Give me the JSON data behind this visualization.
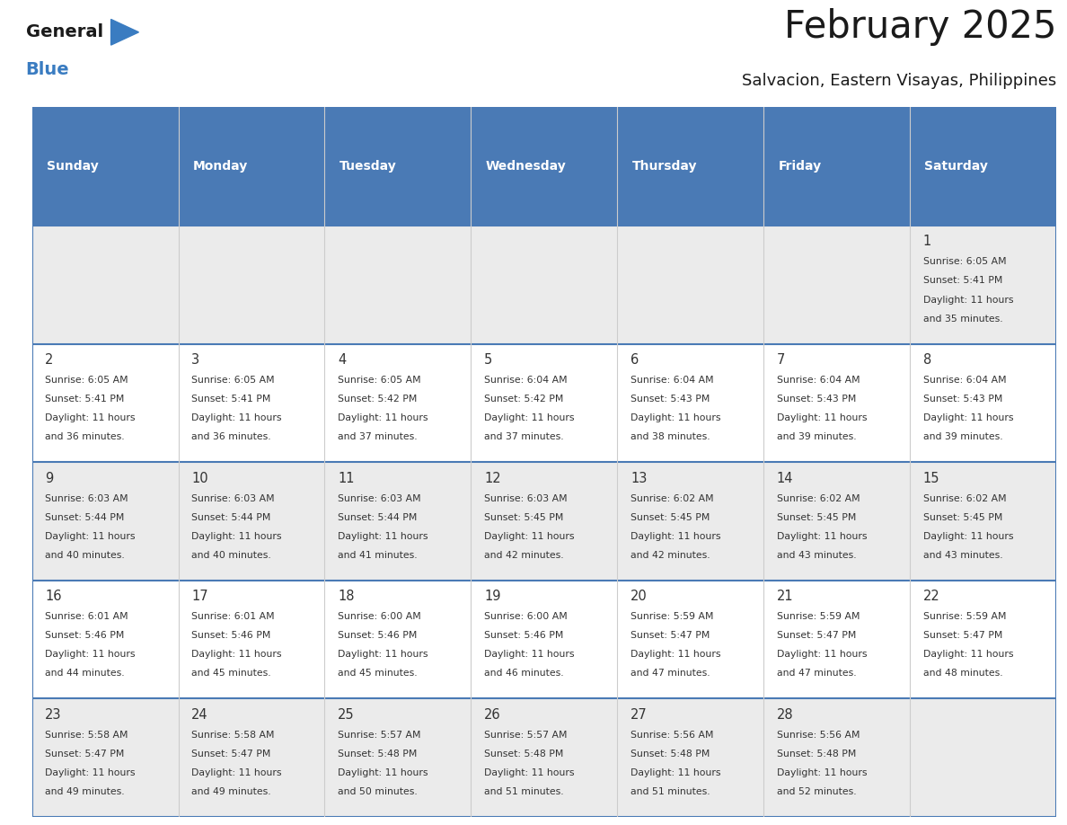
{
  "title": "February 2025",
  "subtitle": "Salvacion, Eastern Visayas, Philippines",
  "days_of_week": [
    "Sunday",
    "Monday",
    "Tuesday",
    "Wednesday",
    "Thursday",
    "Friday",
    "Saturday"
  ],
  "header_bg": "#4a7ab5",
  "header_text": "#FFFFFF",
  "cell_bg_odd": "#ebebeb",
  "cell_bg_even": "#FFFFFF",
  "day_number_color": "#333333",
  "info_text_color": "#333333",
  "border_color": "#4a7ab5",
  "title_color": "#1a1a1a",
  "subtitle_color": "#1a1a1a",
  "logo_general_color": "#1a1a1a",
  "logo_blue_color": "#3a7cc1",
  "calendar_data": [
    [
      {
        "day": null,
        "sunrise": null,
        "sunset": null,
        "daylight": null
      },
      {
        "day": null,
        "sunrise": null,
        "sunset": null,
        "daylight": null
      },
      {
        "day": null,
        "sunrise": null,
        "sunset": null,
        "daylight": null
      },
      {
        "day": null,
        "sunrise": null,
        "sunset": null,
        "daylight": null
      },
      {
        "day": null,
        "sunrise": null,
        "sunset": null,
        "daylight": null
      },
      {
        "day": null,
        "sunrise": null,
        "sunset": null,
        "daylight": null
      },
      {
        "day": 1,
        "sunrise": "6:05 AM",
        "sunset": "5:41 PM",
        "daylight": "11 hours\nand 35 minutes."
      }
    ],
    [
      {
        "day": 2,
        "sunrise": "6:05 AM",
        "sunset": "5:41 PM",
        "daylight": "11 hours\nand 36 minutes."
      },
      {
        "day": 3,
        "sunrise": "6:05 AM",
        "sunset": "5:41 PM",
        "daylight": "11 hours\nand 36 minutes."
      },
      {
        "day": 4,
        "sunrise": "6:05 AM",
        "sunset": "5:42 PM",
        "daylight": "11 hours\nand 37 minutes."
      },
      {
        "day": 5,
        "sunrise": "6:04 AM",
        "sunset": "5:42 PM",
        "daylight": "11 hours\nand 37 minutes."
      },
      {
        "day": 6,
        "sunrise": "6:04 AM",
        "sunset": "5:43 PM",
        "daylight": "11 hours\nand 38 minutes."
      },
      {
        "day": 7,
        "sunrise": "6:04 AM",
        "sunset": "5:43 PM",
        "daylight": "11 hours\nand 39 minutes."
      },
      {
        "day": 8,
        "sunrise": "6:04 AM",
        "sunset": "5:43 PM",
        "daylight": "11 hours\nand 39 minutes."
      }
    ],
    [
      {
        "day": 9,
        "sunrise": "6:03 AM",
        "sunset": "5:44 PM",
        "daylight": "11 hours\nand 40 minutes."
      },
      {
        "day": 10,
        "sunrise": "6:03 AM",
        "sunset": "5:44 PM",
        "daylight": "11 hours\nand 40 minutes."
      },
      {
        "day": 11,
        "sunrise": "6:03 AM",
        "sunset": "5:44 PM",
        "daylight": "11 hours\nand 41 minutes."
      },
      {
        "day": 12,
        "sunrise": "6:03 AM",
        "sunset": "5:45 PM",
        "daylight": "11 hours\nand 42 minutes."
      },
      {
        "day": 13,
        "sunrise": "6:02 AM",
        "sunset": "5:45 PM",
        "daylight": "11 hours\nand 42 minutes."
      },
      {
        "day": 14,
        "sunrise": "6:02 AM",
        "sunset": "5:45 PM",
        "daylight": "11 hours\nand 43 minutes."
      },
      {
        "day": 15,
        "sunrise": "6:02 AM",
        "sunset": "5:45 PM",
        "daylight": "11 hours\nand 43 minutes."
      }
    ],
    [
      {
        "day": 16,
        "sunrise": "6:01 AM",
        "sunset": "5:46 PM",
        "daylight": "11 hours\nand 44 minutes."
      },
      {
        "day": 17,
        "sunrise": "6:01 AM",
        "sunset": "5:46 PM",
        "daylight": "11 hours\nand 45 minutes."
      },
      {
        "day": 18,
        "sunrise": "6:00 AM",
        "sunset": "5:46 PM",
        "daylight": "11 hours\nand 45 minutes."
      },
      {
        "day": 19,
        "sunrise": "6:00 AM",
        "sunset": "5:46 PM",
        "daylight": "11 hours\nand 46 minutes."
      },
      {
        "day": 20,
        "sunrise": "5:59 AM",
        "sunset": "5:47 PM",
        "daylight": "11 hours\nand 47 minutes."
      },
      {
        "day": 21,
        "sunrise": "5:59 AM",
        "sunset": "5:47 PM",
        "daylight": "11 hours\nand 47 minutes."
      },
      {
        "day": 22,
        "sunrise": "5:59 AM",
        "sunset": "5:47 PM",
        "daylight": "11 hours\nand 48 minutes."
      }
    ],
    [
      {
        "day": 23,
        "sunrise": "5:58 AM",
        "sunset": "5:47 PM",
        "daylight": "11 hours\nand 49 minutes."
      },
      {
        "day": 24,
        "sunrise": "5:58 AM",
        "sunset": "5:47 PM",
        "daylight": "11 hours\nand 49 minutes."
      },
      {
        "day": 25,
        "sunrise": "5:57 AM",
        "sunset": "5:48 PM",
        "daylight": "11 hours\nand 50 minutes."
      },
      {
        "day": 26,
        "sunrise": "5:57 AM",
        "sunset": "5:48 PM",
        "daylight": "11 hours\nand 51 minutes."
      },
      {
        "day": 27,
        "sunrise": "5:56 AM",
        "sunset": "5:48 PM",
        "daylight": "11 hours\nand 51 minutes."
      },
      {
        "day": 28,
        "sunrise": "5:56 AM",
        "sunset": "5:48 PM",
        "daylight": "11 hours\nand 52 minutes."
      },
      {
        "day": null,
        "sunrise": null,
        "sunset": null,
        "daylight": null
      }
    ]
  ]
}
